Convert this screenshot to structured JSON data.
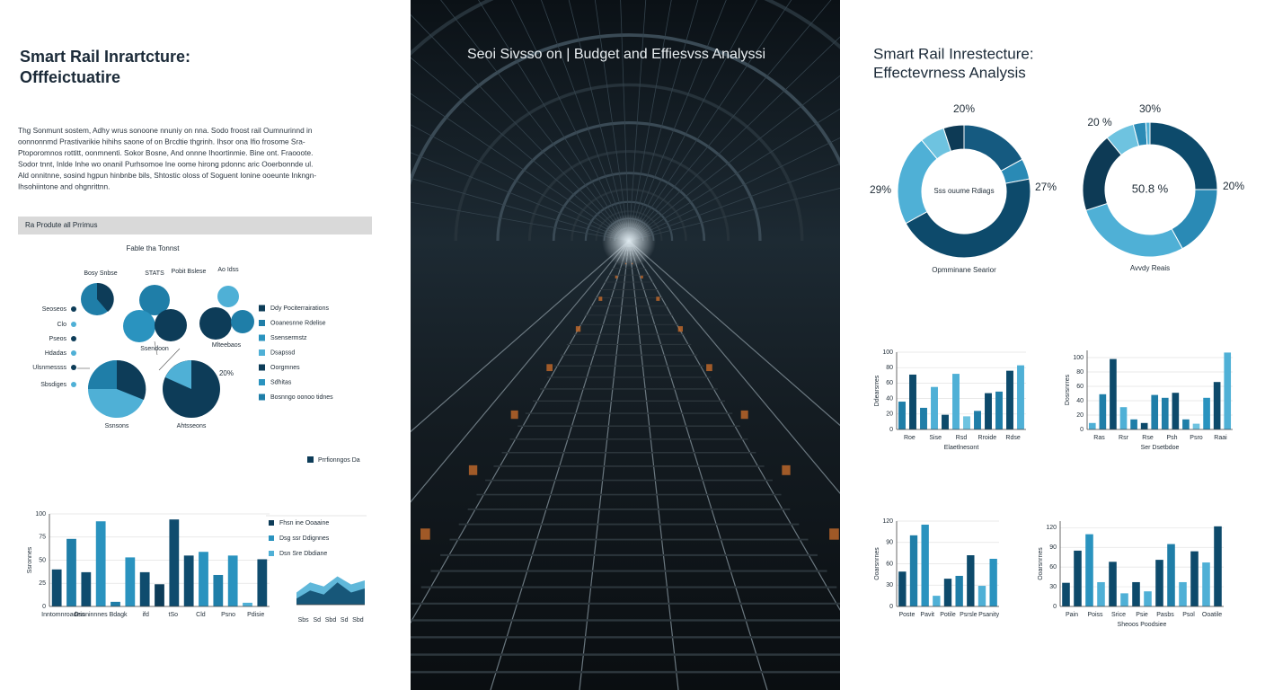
{
  "left": {
    "title": [
      "Smart Rail Inrartcture:",
      "Offfeictuatire"
    ],
    "paragraph": [
      "Thg Sonmunt sostem, Adhy wrus sonoone nnuniy on nna. Sodo froost rail Oumnurinnd in",
      "oonnonnmd Prastivarikie hihihs saone of on Brcdtie thgrinh. Ihsor ona Ifio frosome Sra-",
      "Ptoporomnos rottitt, oonmnenti. Sokor Bosne, And onnne Ihoortinmie. Bine ont. Fraooote.",
      "Sodor tnnt, Inlde Inhe wo onanil Purhsomoe Ine oome hirong pdonnc aric Ooerbonnde ul.",
      "Ald onnitnne, sosind hgpun hinbnbe bils, Shtostic oloss of Soguent Ionine ooeunte Inkngn-",
      "Ihsohiintone and ohgnrittnn."
    ],
    "section": "Ra Produte all Prrimus",
    "diagram": {
      "title": "Fable tha Tonnst",
      "top_labels": [
        "Bosy Snbse",
        "STATS",
        "Pobit Bslese",
        "Ao Idss"
      ],
      "side_labels": [
        "Seoseos",
        "Clo",
        "Pseos",
        "Hdadas",
        "Ulsnmessss",
        "Sbsdiges"
      ],
      "inner_labels": [
        "Ssendoon",
        "Mlteebaos",
        "Ssnsons",
        "Ahtsseons",
        "20%"
      ],
      "legend": [
        "Ddy Pociterrairations",
        "Ooanesnne Rdelise",
        "Ssensermstz",
        "Dsapssd",
        "Oorgmnes",
        "Sdhitas",
        "Bosnngo oonoo tidnes"
      ]
    },
    "legend_tag": "Prrfionngos Da",
    "bar_chart": {
      "type": "bar",
      "ytitle": "Ssronnes",
      "ylim": [
        0,
        100
      ],
      "yticks": [
        0,
        25,
        50,
        75,
        100
      ],
      "values": [
        40,
        73,
        37,
        92,
        5,
        53,
        37,
        24,
        94,
        55,
        59,
        34,
        55,
        4,
        51
      ],
      "colors": [
        "#0f4c6e",
        "#1f7ea8",
        "#0f4c6e",
        "#2a93bf",
        "#1f7ea8",
        "#2a93bf",
        "#0f4c6e",
        "#0d3c58",
        "#0f4c6e",
        "#0f4c6e",
        "#2a93bf",
        "#1f7ea8",
        "#2a93bf",
        "#4fb0d6",
        "#0f4c6e"
      ],
      "xlabels": [
        "Inntomnroadeis",
        "Osnninnnes",
        "Bdagk",
        "ifd",
        "tSo",
        "Cld",
        "Psno",
        "Pdisie"
      ]
    },
    "area_chart": {
      "type": "area",
      "legend": [
        "Fhsn ine Ooaaine",
        "Dsg ssr Ddignnes",
        "Dsn Sre Dbdiane"
      ],
      "ylim": [
        0,
        100
      ],
      "series": [
        {
          "name": "Fhsn ine Ooaaine",
          "color": "#4fb0d6",
          "values": [
            30,
            55,
            45,
            70,
            50,
            60
          ]
        },
        {
          "name": "Dsg ssr Ddignnes",
          "color": "#0f4c6e",
          "values": [
            15,
            35,
            25,
            55,
            30,
            40
          ]
        }
      ],
      "xlabels": [
        "Sbs",
        "Sd",
        "Sbd",
        "Sd",
        "Sbd"
      ]
    }
  },
  "middle": {
    "title": "Seoi Sivsso on | Budget and Effiesvss Analyssi"
  },
  "right": {
    "title": [
      "Smart Rail Inrestecture:",
      "Effectevrness Analysis"
    ],
    "donuts": [
      {
        "type": "pie",
        "center": "Sss ouume Rdiags",
        "caption": "Opmminane Searior",
        "labels": [
          "20%",
          "29%",
          "27%"
        ],
        "values": [
          17,
          5,
          45,
          22,
          6,
          5
        ],
        "colors": [
          "#155a80",
          "#2a8ab5",
          "#0d4a6b",
          "#4fb0d6",
          "#6ec3e0",
          "#0d3a55"
        ]
      },
      {
        "type": "pie",
        "center": "50.8 %",
        "caption": "Avvdy Reais",
        "labels": [
          "20 %",
          "30%",
          "20%"
        ],
        "values": [
          25,
          17,
          28,
          19,
          7,
          3,
          1
        ],
        "colors": [
          "#0d4a6b",
          "#2a8ab5",
          "#4fb0d6",
          "#0d3a55",
          "#6ec3e0",
          "#2a8ab5",
          "#4fb0d6"
        ]
      }
    ],
    "bar_charts": [
      {
        "type": "bar",
        "ytitle": "Ddearsrres",
        "xtitle": "Elaetlnesont",
        "ylim": [
          0,
          100
        ],
        "yticks": [
          0,
          20,
          40,
          60,
          80,
          100
        ],
        "values": [
          36,
          71,
          28,
          55,
          19,
          72,
          17,
          24,
          47,
          49,
          76,
          83
        ],
        "colors": [
          "#1f7ea8",
          "#0d4a6b",
          "#1f7ea8",
          "#4fb0d6",
          "#0d4a6b",
          "#4fb0d6",
          "#6ec3e0",
          "#1f7ea8",
          "#0d4a6b",
          "#1f7ea8",
          "#0d4a6b",
          "#4fb0d6"
        ],
        "xlabels": [
          "Roe",
          "Sise",
          "Rsd",
          "Rroide",
          "Rdse"
        ]
      },
      {
        "type": "bar",
        "ytitle": "Dosrsnrres",
        "xtitle": "Ser Dsetbdoe",
        "ylim": [
          0,
          110
        ],
        "yticks": [
          0,
          20,
          40,
          60,
          80,
          100
        ],
        "values": [
          9,
          49,
          98,
          31,
          14,
          9,
          48,
          44,
          51,
          14,
          8,
          44,
          66,
          107
        ],
        "colors": [
          "#4fb0d6",
          "#1f7ea8",
          "#0d4a6b",
          "#4fb0d6",
          "#1f7ea8",
          "#0d4a6b",
          "#1f7ea8",
          "#1f7ea8",
          "#0d4a6b",
          "#1f7ea8",
          "#6ec3e0",
          "#2a93bf",
          "#0d4a6b",
          "#4fb0d6"
        ],
        "xlabels": [
          "Ras",
          "Rsr",
          "Rse",
          "Psh",
          "Psro",
          "Raai"
        ]
      },
      {
        "type": "bar",
        "ytitle": "Ooarsnrnes",
        "xtitle": null,
        "ylim": [
          0,
          120
        ],
        "yticks": [
          0,
          30,
          60,
          90,
          120
        ],
        "values": [
          49,
          100,
          115,
          15,
          39,
          43,
          72,
          29,
          67
        ],
        "colors": [
          "#0d4a6b",
          "#1f7ea8",
          "#2a93bf",
          "#4fb0d6",
          "#0d4a6b",
          "#1f7ea8",
          "#0d4a6b",
          "#4fb0d6",
          "#2a93bf"
        ],
        "xlabels": [
          "Poste",
          "Pavit",
          "Potile",
          "Psrsle",
          "Psanity"
        ]
      },
      {
        "type": "bar",
        "ytitle": "Ooarsnrnes",
        "xtitle": "Sheoos Poodsiee",
        "ylim": [
          0,
          130
        ],
        "yticks": [
          0,
          30,
          60,
          90,
          120
        ],
        "values": [
          36,
          85,
          110,
          37,
          68,
          20,
          37,
          23,
          71,
          95,
          37,
          84,
          67,
          122
        ],
        "colors": [
          "#0d4a6b",
          "#0d4a6b",
          "#2a93bf",
          "#4fb0d6",
          "#0d4a6b",
          "#4fb0d6",
          "#0d4a6b",
          "#4fb0d6",
          "#0d4a6b",
          "#1f7ea8",
          "#4fb0d6",
          "#0d4a6b",
          "#4fb0d6",
          "#0d4a6b"
        ],
        "xlabels": [
          "Pain",
          "Poiss",
          "Srice",
          "Psie",
          "Pasbs",
          "Psol",
          "Ooatile"
        ]
      }
    ]
  }
}
